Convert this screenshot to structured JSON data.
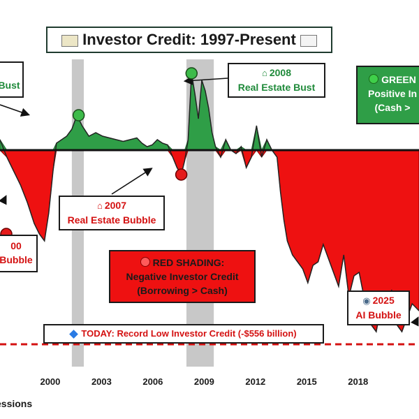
{
  "title": "Investor Credit: 1997-Present",
  "title_icons": [
    "credit-card-icon",
    "calendar-icon"
  ],
  "annotations": {
    "bust_2000": {
      "line2": "Bust"
    },
    "bubble_2000": {
      "line1": "00",
      "line2": "Bubble"
    },
    "bubble_2007": {
      "line1": "2007",
      "line2": "Real Estate Bubble",
      "icon": "house-icon"
    },
    "bust_2008": {
      "line1": "2008",
      "line2": "Real Estate Bust",
      "icon": "house-icon"
    },
    "green_note": {
      "line1": "GREEN",
      "line2": "Positive In",
      "line3": "(Cash >",
      "icon": "green-dot-icon"
    },
    "red_note": {
      "line1": "RED SHADING:",
      "line2": "Negative Investor Credit",
      "line3": "(Borrowing > Cash)",
      "icon": "red-dot-icon"
    },
    "bubble_2025": {
      "line1": "2025",
      "line2": "AI Bubble",
      "icon": "robot-icon"
    },
    "today": {
      "text": "TODAY: Record Low Investor Credit (-$556 billion)",
      "icon": "diamond-icon"
    }
  },
  "legend": {
    "recessions_label": "essions"
  },
  "colors": {
    "positive": "#2f9e47",
    "negative": "#ee1111",
    "recession": "#c8c8c8",
    "zero_line": "#111111",
    "today_line": "#d41111"
  },
  "chart_data": {
    "type": "area",
    "title": "Investor Credit: 1997-Present",
    "x_ticks": [
      "2000",
      "2003",
      "2006",
      "2009",
      "2012",
      "2015",
      "2018"
    ],
    "xlim": [
      1997,
      2021.5
    ],
    "ylim": [
      -620,
      260
    ],
    "zero_line": 0,
    "today_value": -556,
    "recessions": [
      [
        2001.2,
        2001.9
      ],
      [
        2007.9,
        2009.5
      ]
    ],
    "series": [
      {
        "x": [
          1997,
          1997.4,
          1997.8,
          1998.2,
          1998.6,
          1999.0,
          1999.3,
          1999.6,
          1999.85,
          2000.1,
          2000.3,
          2000.6,
          2000.9,
          2001.2,
          2001.5,
          2001.8,
          2002.2,
          2002.6,
          2003.0,
          2003.4,
          2003.8,
          2004.2,
          2004.6,
          2005.0,
          2005.3,
          2005.6,
          2005.9,
          2006.2,
          2006.5,
          2006.8,
          2007.1,
          2007.35,
          2007.6,
          2007.8,
          2008.0,
          2008.2,
          2008.4,
          2008.6,
          2008.8,
          2009.0,
          2009.2,
          2009.4,
          2009.6,
          2009.9,
          2010.2,
          2010.5,
          2010.8,
          2011.1,
          2011.4,
          2011.7,
          2012.0,
          2012.3,
          2012.6,
          2012.9,
          2013.2,
          2013.4,
          2013.6,
          2013.8,
          2014.1,
          2014.4,
          2014.7,
          2015.0,
          2015.3,
          2015.6,
          2015.9,
          2016.2,
          2016.5,
          2016.8,
          2017.1,
          2017.4,
          2017.7,
          2018.0,
          2018.2,
          2018.4,
          2018.7,
          2019.0,
          2019.3,
          2019.6,
          2019.9,
          2020.2,
          2020.5,
          2020.8,
          2021.1,
          2021.5
        ],
        "y": [
          30,
          -20,
          -60,
          -100,
          -150,
          -210,
          -240,
          -260,
          -180,
          -60,
          20,
          30,
          40,
          60,
          100,
          70,
          40,
          50,
          40,
          35,
          30,
          25,
          30,
          35,
          20,
          10,
          15,
          30,
          20,
          15,
          -20,
          -50,
          -70,
          -30,
          30,
          220,
          160,
          90,
          200,
          170,
          120,
          50,
          10,
          -20,
          30,
          0,
          -10,
          10,
          -50,
          -20,
          70,
          -20,
          30,
          0,
          -20,
          -120,
          -200,
          -260,
          -300,
          -320,
          -340,
          -380,
          -330,
          -320,
          -270,
          -310,
          -350,
          -390,
          -300,
          -420,
          -360,
          -350,
          -400,
          -460,
          -500,
          -520,
          -440,
          -460,
          -400,
          -500,
          -520,
          -480,
          -440,
          -460
        ]
      }
    ]
  }
}
